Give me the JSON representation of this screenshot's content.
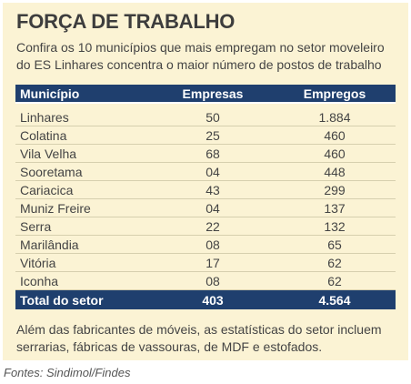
{
  "title": "FORÇA DE TRABALHO",
  "subtitle": "Confira os 10 municípios que mais empregam no setor moveleiro do ES Linhares concentra o maior número de postos de trabalho",
  "table": {
    "headers": [
      "Município",
      "Empresas",
      "Empregos"
    ],
    "rows": [
      [
        "Linhares",
        "50",
        "1.884"
      ],
      [
        "Colatina",
        "25",
        "460"
      ],
      [
        "Vila Velha",
        "68",
        "460"
      ],
      [
        "Sooretama",
        "04",
        "448"
      ],
      [
        "Cariacica",
        "43",
        "299"
      ],
      [
        "Muniz Freire",
        "04",
        "137"
      ],
      [
        "Serra",
        "22",
        "132"
      ],
      [
        "Marilândia",
        "08",
        "65"
      ],
      [
        "Vitória",
        "17",
        "62"
      ],
      [
        "Iconha",
        "08",
        "62"
      ]
    ],
    "total": [
      "Total do setor",
      "403",
      "4.564"
    ]
  },
  "note": "Além das fabricantes de móveis, as estatísticas do setor incluem serrarias, fábricas de vassouras, de MDF e estofados.",
  "source": "Fontes: Sindimol/Findes",
  "colors": {
    "background": "#fbf3d4",
    "header": "#1f3f6e",
    "divider": "#d6cfae"
  }
}
